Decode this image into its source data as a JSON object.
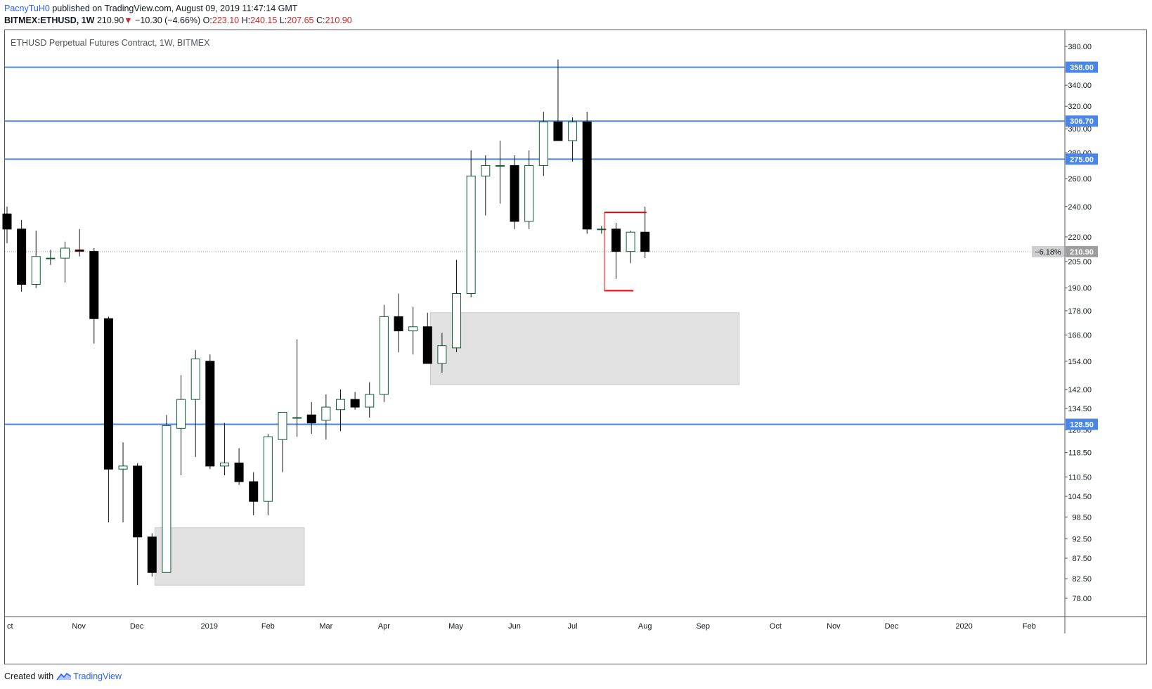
{
  "header": {
    "user": "PacnyTuH0",
    "published": "published on TradingView.com, August 09, 2019 11:47:14 GMT",
    "symbol": "BITMEX:ETHUSD, 1W",
    "last": "210.90",
    "arrow": "▼",
    "change": "−10.30 (−4.66%)",
    "o_label": "O:",
    "o": "223.10",
    "h_label": "H:",
    "h": "240.15",
    "l_label": "L:",
    "l": "207.65",
    "c_label": "C:",
    "c": "210.90"
  },
  "chart_title": "ETHUSD Perpetual Futures Contract, 1W, BITMEX",
  "footer": {
    "created": "Created with",
    "brand": "TradingView"
  },
  "colors": {
    "line": "#4a86e8",
    "grid_label_bg": "#4a86e8",
    "red": "#ff0000",
    "zone": "#e1e1e1",
    "price_tag": "#9e9e9e"
  },
  "chart_data": {
    "type": "candlestick",
    "title": "ETHUSD Perpetual Futures Contract, 1W, BITMEX",
    "y_scale": "log",
    "ylim": [
      74,
      392
    ],
    "y_ticks": [
      "380.00",
      "340.00",
      "320.00",
      "300.00",
      "280.00",
      "260.00",
      "240.00",
      "220.00",
      "205.00",
      "190.00",
      "178.00",
      "166.00",
      "154.00",
      "142.00",
      "134.50",
      "126.50",
      "118.50",
      "110.50",
      "104.50",
      "98.50",
      "92.50",
      "87.50",
      "82.50",
      "78.00"
    ],
    "x_labels": [
      "ct",
      "Nov",
      "Dec",
      "2019",
      "Feb",
      "Mar",
      "Apr",
      "May",
      "Jun",
      "Jul",
      "Aug",
      "Sep",
      "Oct",
      "Nov",
      "Dec",
      "2020",
      "Feb"
    ],
    "candles": [
      {
        "o": 235,
        "h": 240,
        "l": 216,
        "c": 225
      },
      {
        "o": 225,
        "h": 231,
        "l": 188,
        "c": 192
      },
      {
        "o": 192,
        "h": 224,
        "l": 190,
        "c": 208
      },
      {
        "o": 207,
        "h": 212,
        "l": 203,
        "c": 207
      },
      {
        "o": 207,
        "h": 217,
        "l": 193,
        "c": 213
      },
      {
        "o": 212,
        "h": 225,
        "l": 208,
        "c": 211
      },
      {
        "o": 211,
        "h": 213,
        "l": 162,
        "c": 174
      },
      {
        "o": 174,
        "h": 175,
        "l": 97,
        "c": 113
      },
      {
        "o": 113,
        "h": 122,
        "l": 97,
        "c": 114
      },
      {
        "o": 114,
        "h": 115,
        "l": 81,
        "c": 93
      },
      {
        "o": 93,
        "h": 94,
        "l": 83,
        "c": 84
      },
      {
        "o": 84,
        "h": 132,
        "l": 84,
        "c": 128
      },
      {
        "o": 127,
        "h": 148,
        "l": 111,
        "c": 138
      },
      {
        "o": 138,
        "h": 159,
        "l": 117,
        "c": 155
      },
      {
        "o": 154,
        "h": 157,
        "l": 113,
        "c": 114
      },
      {
        "o": 114,
        "h": 129,
        "l": 111,
        "c": 115
      },
      {
        "o": 115,
        "h": 120,
        "l": 108,
        "c": 109
      },
      {
        "o": 109,
        "h": 112,
        "l": 99,
        "c": 103
      },
      {
        "o": 103,
        "h": 125,
        "l": 99,
        "c": 124
      },
      {
        "o": 123,
        "h": 132,
        "l": 112,
        "c": 133
      },
      {
        "o": 131,
        "h": 164,
        "l": 124,
        "c": 131
      },
      {
        "o": 132,
        "h": 137,
        "l": 125,
        "c": 129
      },
      {
        "o": 130,
        "h": 140,
        "l": 123,
        "c": 135
      },
      {
        "o": 134,
        "h": 142,
        "l": 126,
        "c": 138
      },
      {
        "o": 138,
        "h": 141,
        "l": 134,
        "c": 135
      },
      {
        "o": 135,
        "h": 145,
        "l": 131,
        "c": 140
      },
      {
        "o": 140,
        "h": 181,
        "l": 137,
        "c": 175
      },
      {
        "o": 175,
        "h": 187,
        "l": 158,
        "c": 168
      },
      {
        "o": 168,
        "h": 180,
        "l": 157,
        "c": 170
      },
      {
        "o": 170,
        "h": 177,
        "l": 153,
        "c": 153
      },
      {
        "o": 153,
        "h": 167,
        "l": 149,
        "c": 161
      },
      {
        "o": 160,
        "h": 206,
        "l": 158,
        "c": 187
      },
      {
        "o": 187,
        "h": 282,
        "l": 185,
        "c": 262
      },
      {
        "o": 262,
        "h": 278,
        "l": 234,
        "c": 270
      },
      {
        "o": 270,
        "h": 290,
        "l": 242,
        "c": 270
      },
      {
        "o": 270,
        "h": 278,
        "l": 225,
        "c": 230
      },
      {
        "o": 230,
        "h": 282,
        "l": 225,
        "c": 270
      },
      {
        "o": 270,
        "h": 315,
        "l": 262,
        "c": 306
      },
      {
        "o": 306,
        "h": 366,
        "l": 290,
        "c": 290
      },
      {
        "o": 290,
        "h": 310,
        "l": 273,
        "c": 306
      },
      {
        "o": 306,
        "h": 315,
        "l": 222,
        "c": 225
      },
      {
        "o": 225,
        "h": 227,
        "l": 222,
        "c": 225
      },
      {
        "o": 225,
        "h": 229,
        "l": 195,
        "c": 211
      },
      {
        "o": 211,
        "h": 224,
        "l": 204,
        "c": 223
      },
      {
        "o": 223,
        "h": 240,
        "l": 207,
        "c": 211
      }
    ],
    "horizontal_lines": [
      {
        "price": 358.0,
        "label": "358.00"
      },
      {
        "price": 306.7,
        "label": "306.70"
      },
      {
        "price": 275.0,
        "label": "275.00"
      },
      {
        "price": 128.5,
        "label": "128.50"
      }
    ],
    "zones": [
      {
        "from_bar": 10.2,
        "to_bar": 20.5,
        "top": 95.5,
        "bottom": 81.0
      },
      {
        "from_bar": 29.2,
        "to_bar": 50.5,
        "top": 177.0,
        "bottom": 144.0
      }
    ],
    "range_bracket": {
      "from_bar": 41.2,
      "to_bar": 44.1,
      "top": 236.0,
      "bottom": 188.5
    },
    "last_price": {
      "price": 210.9,
      "label": "210.90",
      "change_label": "−6.18%"
    }
  }
}
